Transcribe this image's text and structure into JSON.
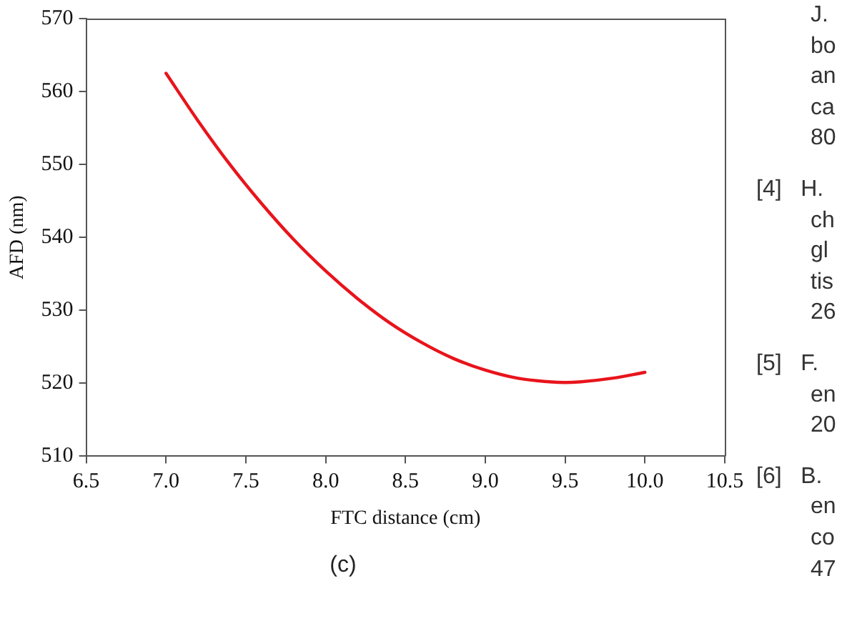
{
  "chart_data": {
    "type": "line",
    "xlabel": "FTC distance (cm)",
    "ylabel": "AFD (nm)",
    "xlim": [
      6.5,
      10.5
    ],
    "ylim": [
      510,
      570
    ],
    "xticks": [
      {
        "value": 6.5,
        "label": "6.5"
      },
      {
        "value": 7,
        "label": "7.0"
      },
      {
        "value": 7.5,
        "label": "7.5"
      },
      {
        "value": 8,
        "label": "8.0"
      },
      {
        "value": 8.5,
        "label": "8.5"
      },
      {
        "value": 9,
        "label": "9.0"
      },
      {
        "value": 9.5,
        "label": "9.5"
      },
      {
        "value": 10,
        "label": "10.0"
      },
      {
        "value": 10.5,
        "label": "10.5"
      }
    ],
    "yticks": [
      510,
      520,
      530,
      540,
      550,
      560,
      570
    ],
    "grid": false,
    "legend": false,
    "marker": "none",
    "line_style": "solid",
    "series": [
      {
        "color": "#e8141c",
        "x": [
          7.0,
          7.2,
          7.4,
          7.6,
          7.8,
          8.0,
          8.2,
          8.4,
          8.6,
          8.8,
          9.0,
          9.2,
          9.4,
          9.5,
          9.6,
          9.8,
          10.0
        ],
        "values": [
          562.5,
          556.0,
          550.0,
          544.6,
          539.7,
          535.4,
          531.6,
          528.3,
          525.6,
          523.4,
          521.8,
          520.7,
          520.2,
          520.1,
          520.2,
          520.7,
          521.5
        ]
      }
    ],
    "annotations": [
      "(c)",
      "J.\nbo\nan\nca\n80",
      "[4]\tH.\nch\ngl\ntis\n26",
      "[5]\tF.\nen\n20",
      "[6]\tB.\nen\nco\n47"
    ]
  }
}
